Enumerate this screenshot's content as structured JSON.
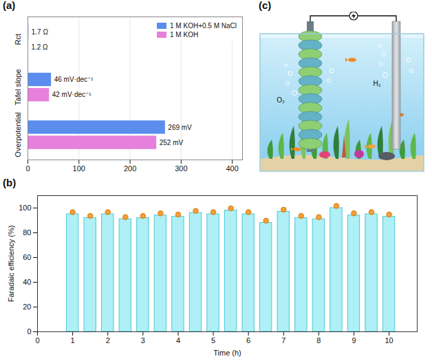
{
  "chart_data": [
    {
      "type": "bar",
      "title": "(a)",
      "orientation": "horizontal",
      "categories": [
        "Rct",
        "Tafel slope",
        "Overpotential"
      ],
      "series": [
        {
          "name": "1 M KOH+0.5 M NaCl",
          "color": "#5b8def",
          "values": [
            1.7,
            46,
            269
          ],
          "value_labels": [
            "1.7 Ω",
            "46 mV·dec⁻¹",
            "269 mV"
          ]
        },
        {
          "name": "1 M KOH",
          "color": "#e680dc",
          "values": [
            1.2,
            42,
            252
          ],
          "value_labels": [
            "1.2 Ω",
            "42 mV·dec⁻¹",
            "252 mV"
          ]
        }
      ],
      "xlim": [
        0,
        420
      ],
      "xticks": [
        0,
        100,
        200,
        300,
        400
      ],
      "grid": true,
      "legend": "top-right",
      "data_labels": true
    },
    {
      "type": "bar",
      "title": "(b)",
      "x_label": "Time (h)",
      "y_label": "Faradaic efficiency (%)",
      "x": [
        1,
        1.5,
        2,
        2.5,
        3,
        3.5,
        4,
        4.5,
        5,
        5.5,
        6,
        6.5,
        7,
        7.5,
        8,
        8.5,
        9,
        9.5,
        10
      ],
      "values": [
        95,
        92,
        95,
        91,
        92,
        94,
        93,
        96,
        95,
        98,
        95,
        88,
        97,
        92,
        91,
        100,
        94,
        95,
        93
      ],
      "color": "#aef0f5",
      "marker": "circle",
      "xlim": [
        0,
        10.8
      ],
      "xticks": [
        0,
        1,
        2,
        3,
        4,
        5,
        6,
        7,
        8,
        9,
        10
      ],
      "ylim": [
        0,
        110
      ],
      "yticks": [
        0,
        20,
        40,
        60,
        80,
        100
      ],
      "grid": false
    }
  ],
  "illustration": {
    "title": "(c)",
    "labels": [
      "O₂",
      "H₂"
    ]
  }
}
